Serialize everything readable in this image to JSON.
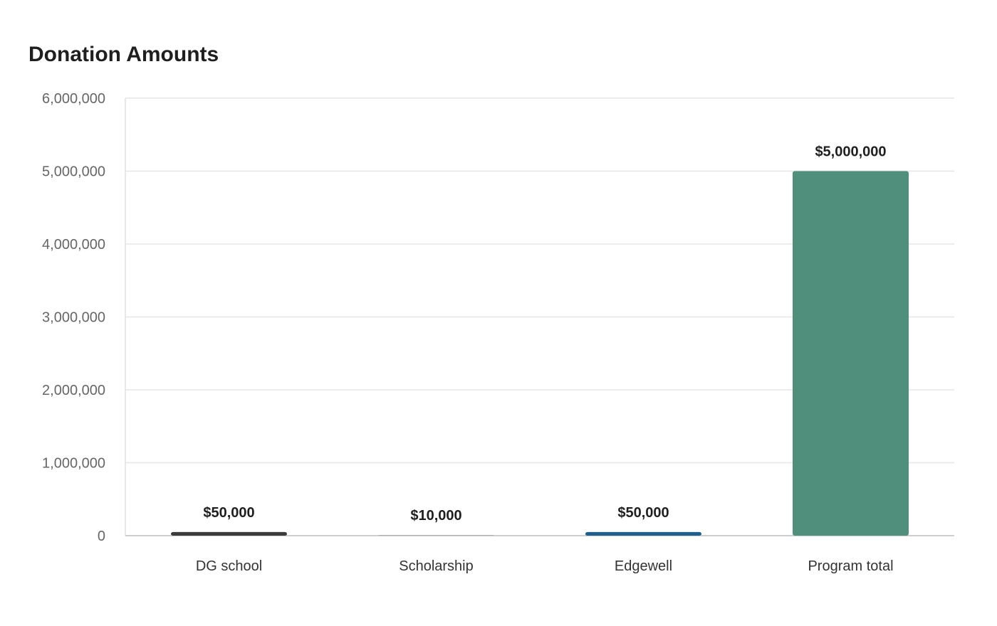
{
  "chart_data": {
    "type": "bar",
    "title": "Donation Amounts",
    "xlabel": "",
    "ylabel": "",
    "categories": [
      "DG school",
      "Scholarship",
      "Edgewell",
      "Program total"
    ],
    "values": [
      50000,
      10000,
      50000,
      5000000
    ],
    "data_labels": [
      "$50,000",
      "$10,000",
      "$50,000",
      "$5,000,000"
    ],
    "bar_colors": [
      "#3b3b3b",
      "#b0b0b0",
      "#1f5f8b",
      "#4f8f7c"
    ],
    "ylim": [
      0,
      6000000
    ],
    "yticks": [
      0,
      1000000,
      2000000,
      3000000,
      4000000,
      5000000,
      6000000
    ],
    "ytick_labels": [
      "0",
      "1,000,000",
      "2,000,000",
      "3,000,000",
      "4,000,000",
      "5,000,000",
      "6,000,000"
    ],
    "grid": true,
    "legend": "none"
  }
}
